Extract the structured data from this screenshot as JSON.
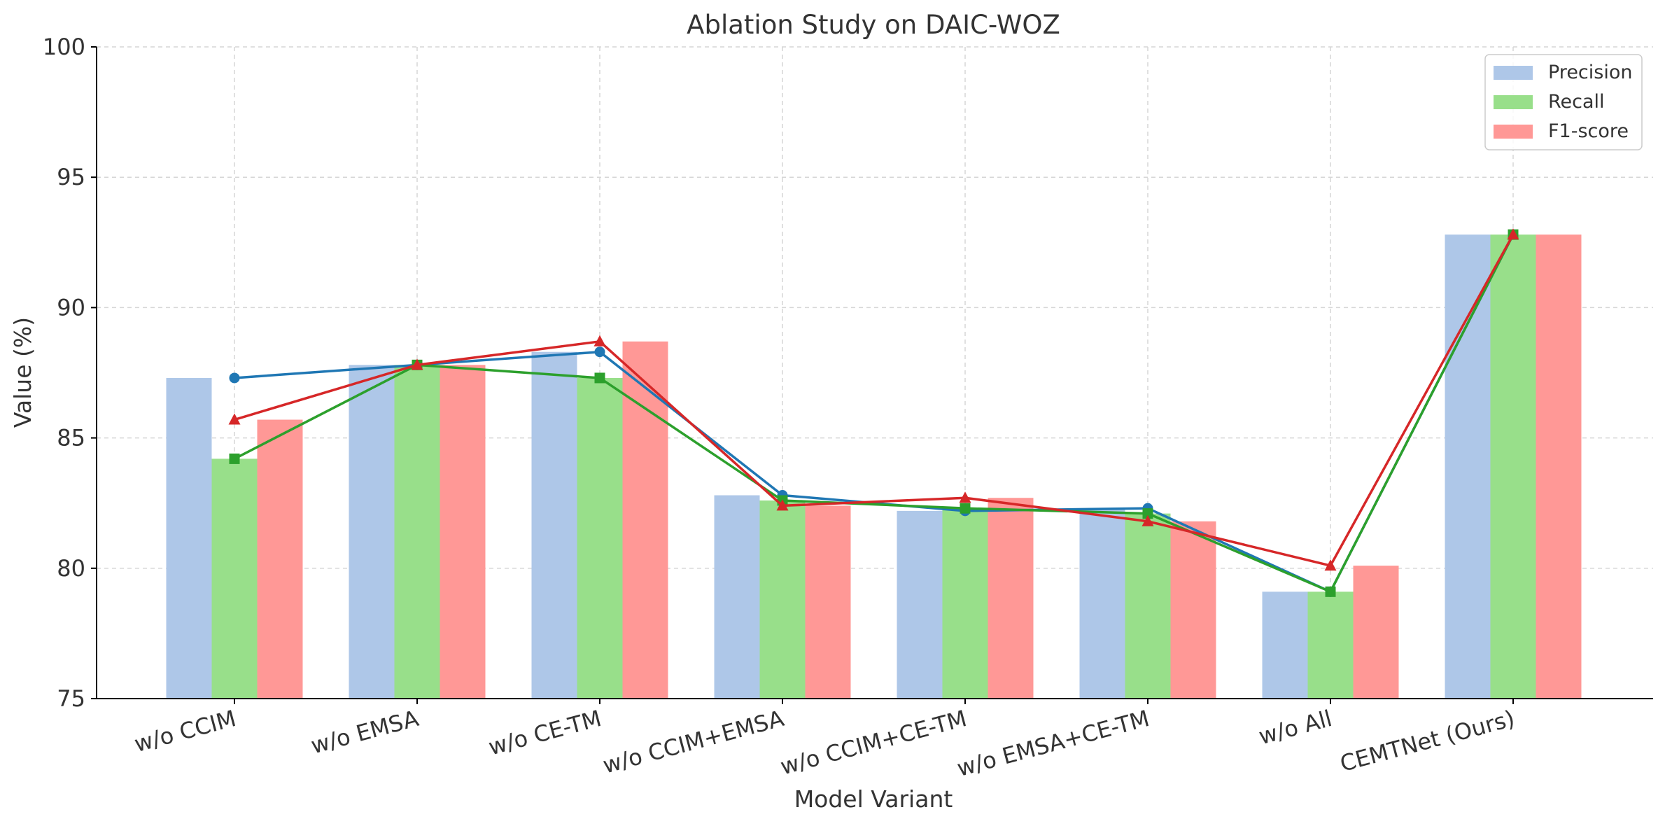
{
  "chart_data": {
    "type": "bar",
    "title": "Ablation Study on DAIC-WOZ",
    "xlabel": "Model Variant",
    "ylabel": "Value (%)",
    "ylim": [
      75,
      100
    ],
    "yticks": [
      75,
      80,
      85,
      90,
      95,
      100
    ],
    "grid": true,
    "legend_position": "top-right",
    "categories": [
      "w/o CCIM",
      "w/o EMSA",
      "w/o CE-TM",
      "w/o CCIM+EMSA",
      "w/o CCIM+CE-TM",
      "w/o EMSA+CE-TM",
      "w/o All",
      "CEMTNet (Ours)"
    ],
    "series": [
      {
        "name": "Precision",
        "bar_color": "#aec7e8",
        "line_color": "#1f77b4",
        "marker": "circle",
        "values": [
          87.3,
          87.8,
          88.3,
          82.8,
          82.2,
          82.3,
          79.1,
          92.8
        ]
      },
      {
        "name": "Recall",
        "bar_color": "#98df8a",
        "line_color": "#2ca02c",
        "marker": "square",
        "values": [
          84.2,
          87.8,
          87.3,
          82.6,
          82.3,
          82.1,
          79.1,
          92.8
        ]
      },
      {
        "name": "F1-score",
        "bar_color": "#ff9896",
        "line_color": "#d62728",
        "marker": "triangle",
        "values": [
          85.7,
          87.8,
          88.7,
          82.4,
          82.7,
          81.8,
          80.1,
          92.8
        ]
      }
    ]
  }
}
